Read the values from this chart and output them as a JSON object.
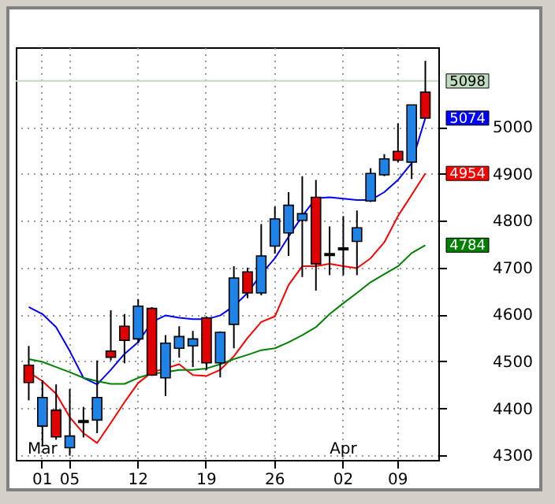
{
  "chart_data": {
    "type": "candlestick",
    "categories": [
      null,
      "01",
      null,
      "05",
      null,
      null,
      null,
      null,
      "12",
      null,
      null,
      null,
      null,
      "19",
      null,
      null,
      null,
      null,
      "26",
      null,
      null,
      null,
      null,
      "02",
      null,
      null,
      null,
      "09",
      null,
      null
    ],
    "ohlc": [
      [
        4492,
        4533,
        4417,
        4455
      ],
      [
        4362,
        4460,
        4319,
        4423
      ],
      [
        4396,
        4451,
        4333,
        4339
      ],
      [
        4316,
        4441,
        4299,
        4341
      ],
      [
        4370,
        4403,
        4338,
        4374
      ],
      [
        4375,
        4502,
        4347,
        4423
      ],
      [
        4522,
        4609,
        4502,
        4509
      ],
      [
        4575,
        4601,
        4496,
        4545
      ],
      [
        4548,
        4633,
        4539,
        4618
      ],
      [
        4613,
        4616,
        4469,
        4471
      ],
      [
        4465,
        4556,
        4426,
        4539
      ],
      [
        4528,
        4575,
        4508,
        4553
      ],
      [
        4533,
        4565,
        4488,
        4548
      ],
      [
        4593,
        4596,
        4482,
        4497
      ],
      [
        4497,
        4564,
        4466,
        4562
      ],
      [
        4579,
        4703,
        4528,
        4678
      ],
      [
        4691,
        4700,
        4635,
        4646
      ],
      [
        4646,
        4793,
        4641,
        4725
      ],
      [
        4746,
        4830,
        4730,
        4804
      ],
      [
        4774,
        4861,
        4725,
        4833
      ],
      [
        4801,
        4895,
        4680,
        4815
      ],
      [
        4850,
        4887,
        4651,
        4708
      ],
      [
        4726,
        4788,
        4684,
        4730
      ],
      [
        4738,
        4810,
        4684,
        4742
      ],
      [
        4756,
        4822,
        4684,
        4785
      ],
      [
        4842,
        4912,
        4840,
        4901
      ],
      [
        4898,
        4942,
        4895,
        4932
      ],
      [
        4948,
        5008,
        4925,
        4929
      ],
      [
        4925,
        5047,
        4889,
        5047
      ],
      [
        5074,
        5141,
        5019,
        5019
      ]
    ],
    "colors": [
      "#e00000",
      "#1e82e6",
      "#e00000",
      "#1e82e6",
      "#000000",
      "#1e82e6",
      "#e00000",
      "#e00000",
      "#1e82e6",
      "#e00000",
      "#1e82e6",
      "#1e82e6",
      "#1e82e6",
      "#e00000",
      "#1e82e6",
      "#1e82e6",
      "#e00000",
      "#1e82e6",
      "#1e82e6",
      "#1e82e6",
      "#1e82e6",
      "#e00000",
      "#000000",
      "#000000",
      "#1e82e6",
      "#1e82e6",
      "#1e82e6",
      "#e00000",
      "#1e82e6",
      "#e00000"
    ],
    "series": [
      {
        "type": "line",
        "color": "#0000ff",
        "values": [
          4616,
          4601,
          4573,
          4522,
          4465,
          4451,
          4482,
          4516,
          4541,
          4584,
          4598,
          4593,
          4590,
          4590,
          4598,
          4618,
          4646,
          4686,
          4720,
          4766,
          4810,
          4848,
          4850,
          4847,
          4844,
          4844,
          4861,
          4887,
          4923,
          5019
        ]
      },
      {
        "type": "line",
        "color": "#ff0000",
        "values": [
          4477,
          4458,
          4431,
          4381,
          4347,
          4326,
          4369,
          4413,
          4454,
          4477,
          4485,
          4494,
          4471,
          4469,
          4482,
          4511,
          4550,
          4584,
          4596,
          4663,
          4703,
          4703,
          4708,
          4703,
          4699,
          4720,
          4754,
          4810,
          4855,
          4901
        ]
      },
      {
        "type": "line",
        "color": "#008000",
        "values": [
          4505,
          4499,
          4488,
          4477,
          4465,
          4458,
          4452,
          4452,
          4465,
          4474,
          4477,
          4482,
          4482,
          4485,
          4494,
          4505,
          4514,
          4524,
          4528,
          4541,
          4556,
          4573,
          4601,
          4624,
          4646,
          4669,
          4686,
          4703,
          4731,
          4748
        ]
      }
    ],
    "ylim": [
      4290,
      5170
    ],
    "yticks": [
      4300,
      4400,
      4500,
      4600,
      4700,
      4800,
      4900,
      5000
    ],
    "grid": true,
    "marker": "none",
    "line_style": "solid",
    "ref_lines": [
      {
        "axis": "y",
        "value": 5098,
        "label": "5098",
        "color": "#c0dcc0"
      }
    ],
    "annotations": [
      "5074",
      "4954",
      "4784",
      "Mar",
      "Apr"
    ]
  }
}
